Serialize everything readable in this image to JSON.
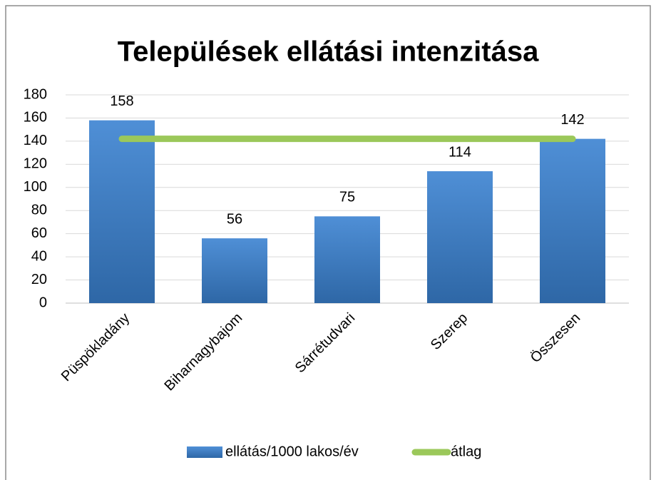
{
  "chart_data": {
    "type": "bar",
    "title": "Települések ellátási intenzitása",
    "categories": [
      "Püspökladány",
      "Biharnagybajom",
      "Sárrétudvari",
      "Szerep",
      "Összesen"
    ],
    "series": [
      {
        "name": "ellátás/1000 lakos/év",
        "type": "bar",
        "color": "#3d7cc4",
        "values": [
          158,
          56,
          75,
          114,
          142
        ]
      },
      {
        "name": "átlag",
        "type": "line",
        "color": "#9bc85a",
        "values": [
          142,
          142,
          142,
          142,
          142
        ]
      }
    ],
    "ylim": [
      0,
      180
    ],
    "yticks": [
      0,
      20,
      40,
      60,
      80,
      100,
      120,
      140,
      160,
      180
    ],
    "grid": true,
    "legend": "bottom"
  }
}
